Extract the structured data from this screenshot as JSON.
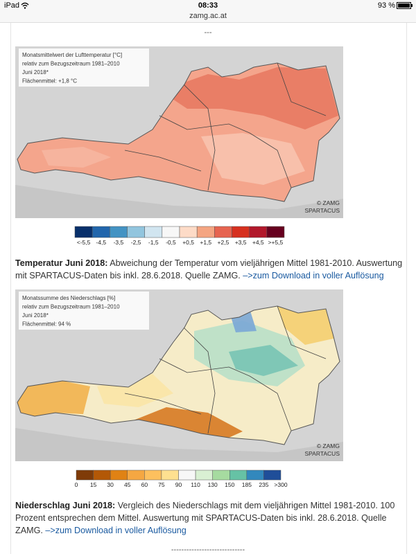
{
  "status_bar": {
    "device": "iPad",
    "time": "08:33",
    "battery": "93 %",
    "url": "zamg.ac.at"
  },
  "separator_top": "---",
  "figures": [
    {
      "map_legend": [
        "Monatsmittelwert der Lufttemperatur [°C]",
        "relativ zum Bezugszeitraum 1981–2010",
        "Juni 2018*",
        "Flächenmittel: +1,8 °C"
      ],
      "credit": [
        "© ZAMG",
        "SPARTACUS"
      ],
      "scale": {
        "labels": [
          "<-5,5",
          "-4,5",
          "-3,5",
          "-2,5",
          "-1,5",
          "-0,5",
          "+0,5",
          "+1,5",
          "+2,5",
          "+3,5",
          "+4,5",
          ">+5,5"
        ],
        "colors": [
          "#08306b",
          "#2166ac",
          "#4393c3",
          "#92c5de",
          "#d1e5f0",
          "#f7f7f7",
          "#fddbc7",
          "#f4a582",
          "#e66450",
          "#d6301f",
          "#b2182b",
          "#67001f"
        ]
      },
      "caption": {
        "title": "Temperatur Juni 2018:",
        "text": " Abweichung der Temperatur vom vieljährigen Mittel 1981-2010. Auswertung mit SPARTACUS-Daten bis inkl. 28.6.2018. Quelle ZAMG. ",
        "link": "–>zum Download in voller Auflösung"
      }
    },
    {
      "map_legend": [
        "Monatssumme des Niederschlags [%]",
        "relativ zum Bezugszeitraum 1981–2010",
        "Juni 2018*",
        "Flächenmittel: 94 %"
      ],
      "credit": [
        "© ZAMG",
        "SPARTACUS"
      ],
      "scale": {
        "labels": [
          "0",
          "15",
          "30",
          "45",
          "60",
          "75",
          "90",
          "110",
          "130",
          "150",
          "185",
          "235",
          ">300"
        ],
        "colors": [
          "#7f3b08",
          "#b35806",
          "#e08214",
          "#f5a742",
          "#fdc05e",
          "#fee090",
          "#f7f7f7",
          "#d9f0d3",
          "#a6dba0",
          "#66c2a5",
          "#3288bd",
          "#1f4e99"
        ]
      },
      "caption": {
        "title": "Niederschlag Juni 2018:",
        "text": " Vergleich des Niederschlags mit dem vieljährigen Mittel 1981-2010. 100 Prozent entsprechen dem Mittel. Auswertung mit SPARTACUS-Daten bis inkl. 28.6.2018. Quelle ZAMG. ",
        "link": "–>zum Download in voller Auflösung"
      }
    }
  ],
  "separator_bottom": "-----------------------------"
}
